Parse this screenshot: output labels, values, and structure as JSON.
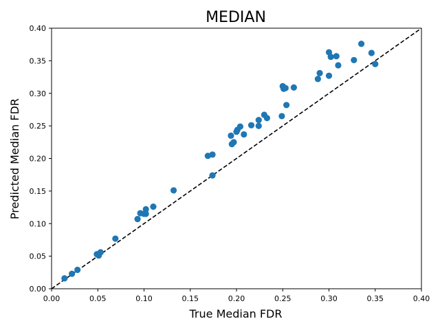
{
  "chart_data": {
    "type": "scatter",
    "title": "MEDIAN",
    "xlabel": "True Median FDR",
    "ylabel": "Predicted Median FDR",
    "xlim": [
      0.0,
      0.4
    ],
    "ylim": [
      0.0,
      0.4
    ],
    "xticks": [
      "0.00",
      "0.05",
      "0.10",
      "0.15",
      "0.20",
      "0.25",
      "0.30",
      "0.35",
      "0.40"
    ],
    "yticks": [
      "0.00",
      "0.05",
      "0.10",
      "0.15",
      "0.20",
      "0.25",
      "0.30",
      "0.35",
      "0.40"
    ],
    "grid": false,
    "reference_line": {
      "style": "dashed",
      "color": "#000000",
      "from": [
        0.0,
        0.0
      ],
      "to": [
        0.4,
        0.4
      ]
    },
    "marker_color": "#1f77b4",
    "points": [
      {
        "x": 0.014,
        "y": 0.016
      },
      {
        "x": 0.022,
        "y": 0.023
      },
      {
        "x": 0.028,
        "y": 0.029
      },
      {
        "x": 0.049,
        "y": 0.053
      },
      {
        "x": 0.051,
        "y": 0.051
      },
      {
        "x": 0.053,
        "y": 0.056
      },
      {
        "x": 0.069,
        "y": 0.077
      },
      {
        "x": 0.093,
        "y": 0.107
      },
      {
        "x": 0.096,
        "y": 0.116
      },
      {
        "x": 0.1,
        "y": 0.115
      },
      {
        "x": 0.102,
        "y": 0.122
      },
      {
        "x": 0.102,
        "y": 0.115
      },
      {
        "x": 0.11,
        "y": 0.126
      },
      {
        "x": 0.132,
        "y": 0.151
      },
      {
        "x": 0.169,
        "y": 0.204
      },
      {
        "x": 0.174,
        "y": 0.206
      },
      {
        "x": 0.174,
        "y": 0.174
      },
      {
        "x": 0.194,
        "y": 0.235
      },
      {
        "x": 0.195,
        "y": 0.222
      },
      {
        "x": 0.197,
        "y": 0.225
      },
      {
        "x": 0.2,
        "y": 0.241
      },
      {
        "x": 0.201,
        "y": 0.244
      },
      {
        "x": 0.204,
        "y": 0.249
      },
      {
        "x": 0.208,
        "y": 0.237
      },
      {
        "x": 0.216,
        "y": 0.251
      },
      {
        "x": 0.224,
        "y": 0.259
      },
      {
        "x": 0.224,
        "y": 0.25
      },
      {
        "x": 0.23,
        "y": 0.267
      },
      {
        "x": 0.233,
        "y": 0.262
      },
      {
        "x": 0.249,
        "y": 0.265
      },
      {
        "x": 0.25,
        "y": 0.311
      },
      {
        "x": 0.251,
        "y": 0.307
      },
      {
        "x": 0.253,
        "y": 0.308
      },
      {
        "x": 0.254,
        "y": 0.282
      },
      {
        "x": 0.262,
        "y": 0.309
      },
      {
        "x": 0.288,
        "y": 0.322
      },
      {
        "x": 0.29,
        "y": 0.331
      },
      {
        "x": 0.3,
        "y": 0.327
      },
      {
        "x": 0.3,
        "y": 0.363
      },
      {
        "x": 0.302,
        "y": 0.356
      },
      {
        "x": 0.308,
        "y": 0.357
      },
      {
        "x": 0.31,
        "y": 0.343
      },
      {
        "x": 0.327,
        "y": 0.351
      },
      {
        "x": 0.335,
        "y": 0.376
      },
      {
        "x": 0.346,
        "y": 0.362
      },
      {
        "x": 0.35,
        "y": 0.345
      }
    ]
  }
}
